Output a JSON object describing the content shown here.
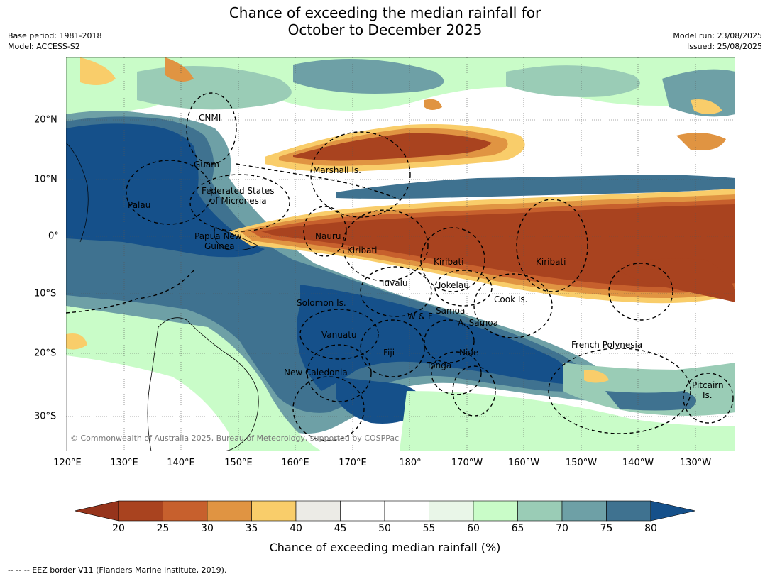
{
  "title_line1": "Chance of exceeding the median rainfall for",
  "title_line2": "October to December 2025",
  "meta_left": {
    "base_period": "Base period: 1981-2018",
    "model": "Model: ACCESS-S2"
  },
  "meta_right": {
    "model_run": "Model run: 23/08/2025",
    "issued": "Issued: 25/08/2025"
  },
  "longitude_labels": [
    "120°E",
    "130°E",
    "140°E",
    "150°E",
    "160°E",
    "170°E",
    "180°",
    "170°W",
    "160°W",
    "150°W",
    "140°W",
    "130°W"
  ],
  "latitude_labels": [
    "20°N",
    "10°N",
    "0°",
    "10°S",
    "20°S",
    "30°S"
  ],
  "places": {
    "cnmi": "CNMI",
    "guam": "Guam",
    "marshall": "Marshall Is.",
    "fsm1": "Federated States",
    "fsm2": "of Micronesia",
    "palau": "Palau",
    "png1": "Papua New",
    "png2": "Guinea",
    "nauru": "Nauru",
    "kiribati_w": "Kiribati",
    "kiribati_c": "Kiribati",
    "kiribati_e": "Kiribati",
    "tuvalu": "Tuvalu",
    "tokelau": "Tokelau",
    "cook": "Cook Is.",
    "solomon": "Solomon Is.",
    "wf": "W & F",
    "samoa": "Samoa",
    "asamoa": "A. Samoa",
    "vanuatu": "Vanuatu",
    "fiji": "Fiji",
    "niue": "Niue",
    "tonga": "Tonga",
    "frpoly": "French Polynesia",
    "newcal": "New Caledonia",
    "pitcairn1": "Pitcairn",
    "pitcairn2": "Is."
  },
  "copyright": "© Commonwealth of Australia 2025, Bureau of Meteorology, supported by COSPPac",
  "colorbar": {
    "ticks": [
      "20",
      "25",
      "30",
      "35",
      "40",
      "45",
      "50",
      "55",
      "60",
      "65",
      "70",
      "75",
      "80"
    ],
    "colors": [
      "#a9431f",
      "#c7602d",
      "#e09442",
      "#f9cd6a",
      "#ecebe6",
      "#ffffff",
      "#ffffff",
      "#e9f6e8",
      "#c9fcc8",
      "#9accb6",
      "#6ea0a6",
      "#3f7290"
    ],
    "under_color": "#96341c",
    "over_color": "#15508a",
    "label": "Chance of exceeding median rainfall (%)"
  },
  "footnote": "--  --  -- EEZ border V11 (Flanders Marine Institute, 2019)."
}
